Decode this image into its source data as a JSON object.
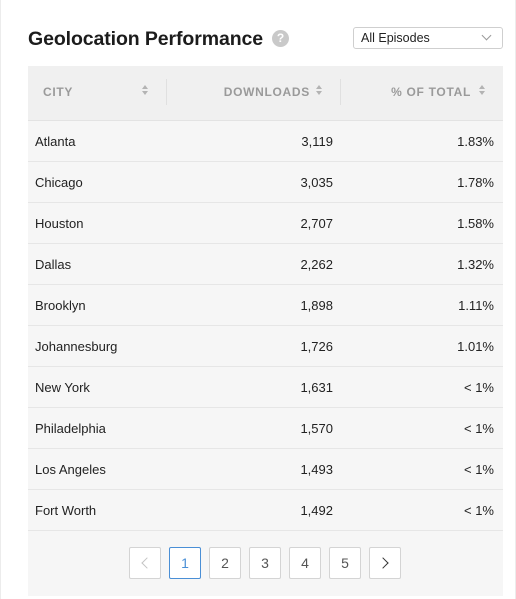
{
  "header": {
    "title": "Geolocation Performance",
    "help_glyph": "?",
    "filter": {
      "selected": "All Episodes"
    }
  },
  "table": {
    "columns": [
      "CITY",
      "DOWNLOADS",
      "% OF TOTAL"
    ],
    "rows": [
      {
        "city": "Atlanta",
        "downloads": "3,119",
        "pct": "1.83%"
      },
      {
        "city": "Chicago",
        "downloads": "3,035",
        "pct": "1.78%"
      },
      {
        "city": "Houston",
        "downloads": "2,707",
        "pct": "1.58%"
      },
      {
        "city": "Dallas",
        "downloads": "2,262",
        "pct": "1.32%"
      },
      {
        "city": "Brooklyn",
        "downloads": "1,898",
        "pct": "1.11%"
      },
      {
        "city": "Johannesburg",
        "downloads": "1,726",
        "pct": "1.01%"
      },
      {
        "city": "New York",
        "downloads": "1,631",
        "pct": "< 1%"
      },
      {
        "city": "Philadelphia",
        "downloads": "1,570",
        "pct": "< 1%"
      },
      {
        "city": "Los Angeles",
        "downloads": "1,493",
        "pct": "< 1%"
      },
      {
        "city": "Fort Worth",
        "downloads": "1,492",
        "pct": "< 1%"
      }
    ]
  },
  "pagination": {
    "pages": [
      "1",
      "2",
      "3",
      "4",
      "5"
    ],
    "current": "1"
  },
  "icons": {
    "help": "question-circle-icon",
    "dropdown": "chevron-down-icon",
    "sort": "sort-icon",
    "prev": "chevron-left-icon",
    "next": "chevron-right-icon"
  },
  "colors": {
    "accent": "#4a8fd6",
    "header_text": "#9a9a9a",
    "row_bg": "#f6f6f6"
  }
}
